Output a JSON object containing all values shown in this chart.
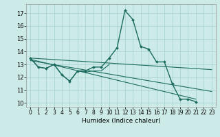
{
  "title": "",
  "xlabel": "Humidex (Indice chaleur)",
  "bg_color": "#cceae7",
  "grid_color": "#aad4d0",
  "line_color": "#1a6b5e",
  "xlim": [
    -0.5,
    23.5
  ],
  "ylim": [
    9.7,
    17.7
  ],
  "yticks": [
    10,
    11,
    12,
    13,
    14,
    15,
    16,
    17
  ],
  "xticks": [
    0,
    1,
    2,
    3,
    4,
    5,
    6,
    7,
    8,
    9,
    10,
    11,
    12,
    13,
    14,
    15,
    16,
    17,
    18,
    19,
    20,
    21,
    22,
    23
  ],
  "series": [
    {
      "x": [
        0,
        1,
        2,
        3,
        4,
        5,
        6,
        7,
        8,
        9,
        10,
        11,
        12,
        13,
        14,
        15,
        16,
        17,
        18,
        19,
        20,
        21,
        22,
        23
      ],
      "y": [
        13.5,
        12.8,
        12.7,
        13.0,
        12.2,
        11.7,
        12.5,
        12.5,
        12.8,
        12.8,
        13.5,
        14.3,
        17.2,
        16.5,
        14.4,
        14.2,
        13.2,
        13.2,
        11.5,
        10.3,
        10.3,
        10.1,
        null,
        null
      ],
      "marker": true,
      "lw": 1.0
    },
    {
      "x": [
        0,
        1,
        2,
        3,
        4,
        5,
        6,
        7,
        8,
        9,
        10
      ],
      "y": [
        13.5,
        12.8,
        12.7,
        13.0,
        12.2,
        11.7,
        12.5,
        12.4,
        12.5,
        12.5,
        13.0
      ],
      "marker": false,
      "lw": 0.8
    },
    {
      "x": [
        0,
        23
      ],
      "y": [
        13.5,
        12.6
      ],
      "marker": false,
      "lw": 0.8
    },
    {
      "x": [
        0,
        21
      ],
      "y": [
        13.4,
        10.3
      ],
      "marker": false,
      "lw": 0.8
    },
    {
      "x": [
        0,
        23
      ],
      "y": [
        13.3,
        10.9
      ],
      "marker": false,
      "lw": 0.8
    }
  ]
}
